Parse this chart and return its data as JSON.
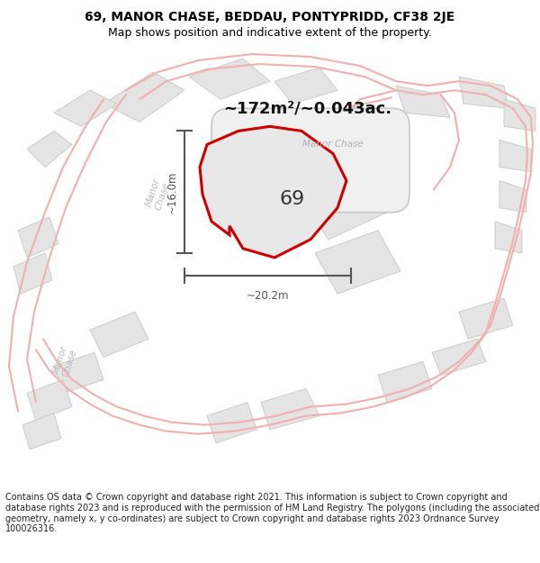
{
  "title_line1": "69, MANOR CHASE, BEDDAU, PONTYPRIDD, CF38 2JE",
  "title_line2": "Map shows position and indicative extent of the property.",
  "area_text": "~172m²/~0.043ac.",
  "plot_number": "69",
  "dim_horizontal": "~20.2m",
  "dim_vertical": "~16.0m",
  "footer_text": "Contains OS data © Crown copyright and database right 2021. This information is subject to Crown copyright and database rights 2023 and is reproduced with the permission of HM Land Registry. The polygons (including the associated geometry, namely x, y co-ordinates) are subject to Crown copyright and database rights 2023 Ordnance Survey 100026316.",
  "bg_color": "#ffffff",
  "map_bg": "#ffffff",
  "plot_fill": "#e8e8e8",
  "plot_edge": "#cc0000",
  "road_line_color": "#f0b0b0",
  "road_center_label_color": "#c0c0c0",
  "gray_fill": "#e4e4e4",
  "gray_edge": "#cccccc",
  "dim_color": "#555555",
  "title_color": "#000000",
  "area_color": "#111111",
  "footer_fontsize": 7.0,
  "title_fontsize": 10,
  "subtitle_fontsize": 9,
  "road_lw": 1.2,
  "prop_lw": 2.2
}
